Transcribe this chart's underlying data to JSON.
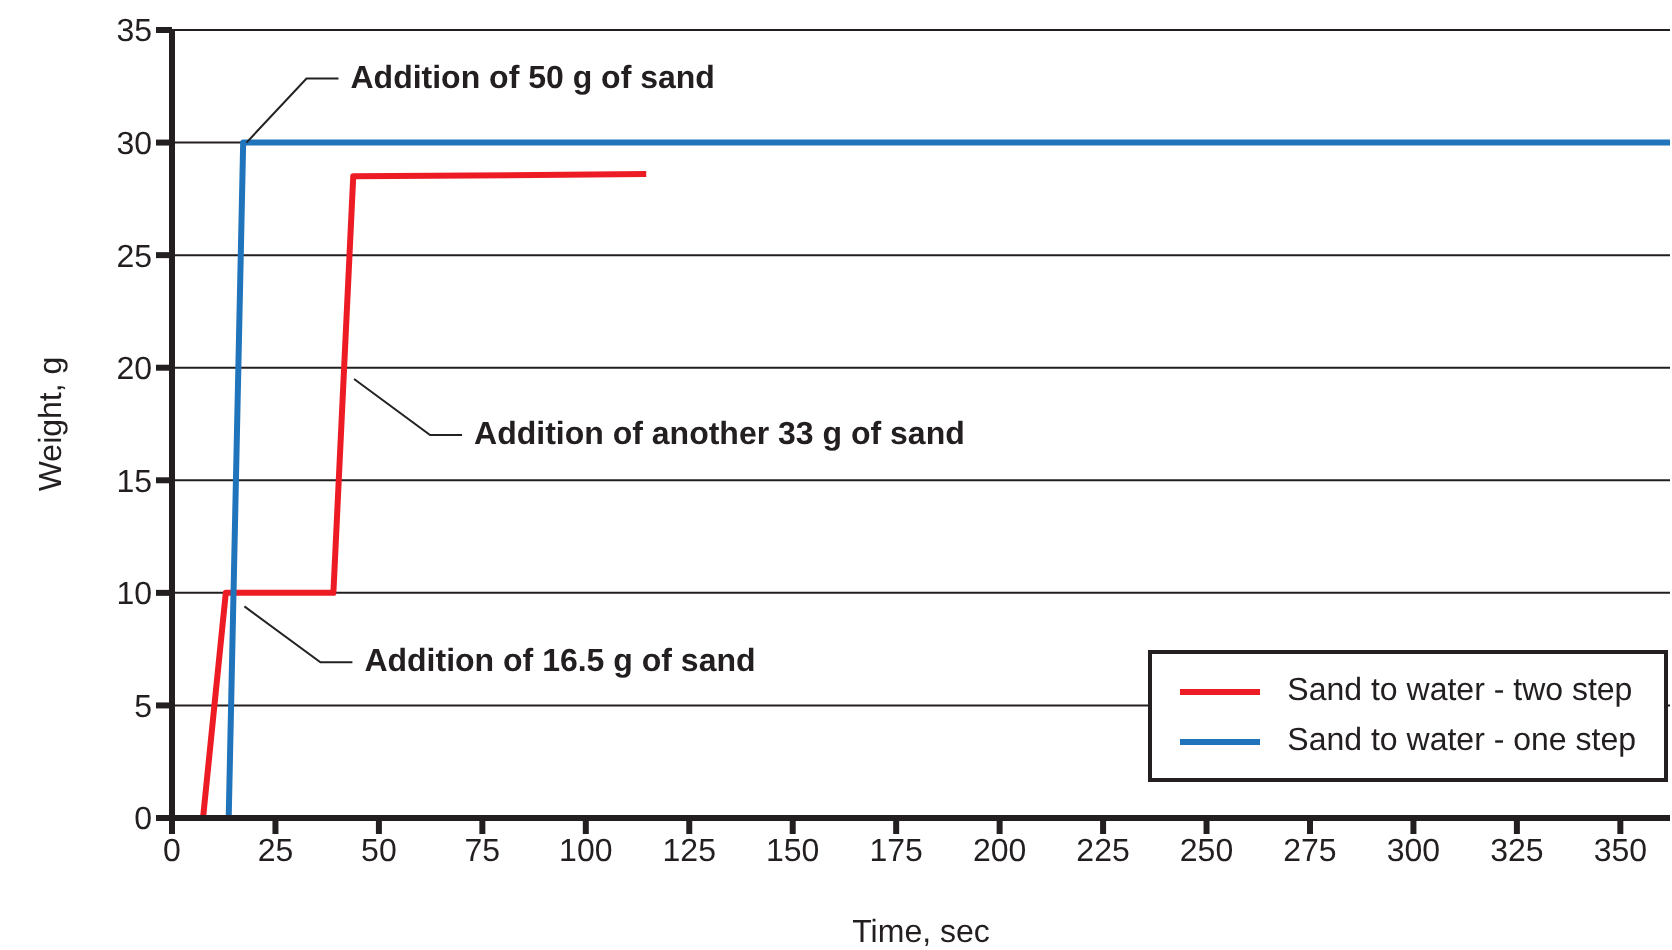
{
  "chart_data": {
    "type": "line",
    "xlabel": "Time, sec",
    "ylabel": "Weight, g",
    "series": [
      {
        "name": "Sand to water - two step",
        "color": "#ed1c24",
        "x": [
          0,
          7.5,
          13,
          39,
          43.8,
          114.6
        ],
        "values": [
          0,
          0,
          10,
          10,
          28.5,
          28.6
        ]
      },
      {
        "name": "Sand to water - one step",
        "color": "#1f74bb",
        "x": [
          0,
          13.7,
          17.2,
          362
        ],
        "values": [
          0,
          0,
          30,
          30
        ]
      }
    ],
    "annotations": [
      {
        "text": "Addition of 50 g of sand",
        "x": 18,
        "y": 30
      },
      {
        "text": "Addition of another 33 g of sand",
        "x": 44,
        "y": 19.5
      },
      {
        "text": "Addition of 16.5 g of sand",
        "x": 17.5,
        "y": 9.4
      }
    ],
    "xlim": [
      0,
      362
    ],
    "xticks": [
      0,
      25,
      50,
      75,
      100,
      125,
      150,
      175,
      200,
      225,
      250,
      275,
      300,
      325,
      350
    ],
    "ylim": [
      0,
      35
    ],
    "yticks": [
      0,
      5,
      10,
      15,
      20,
      25,
      30,
      35
    ],
    "grid": "y",
    "legend": "bottom right",
    "marker": "none",
    "line_style": "solid"
  }
}
